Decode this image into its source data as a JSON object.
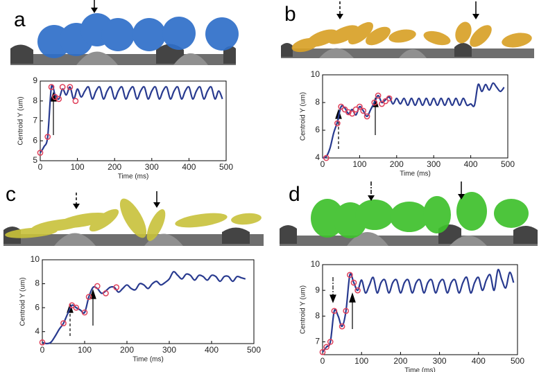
{
  "chart_data": [
    {
      "type": "line",
      "label": "a",
      "xlabel": "Time (ms)",
      "ylabel": "Centroid Y (um)",
      "color": "#283a8f",
      "xlim": [
        0,
        500
      ],
      "xticks": [
        0,
        100,
        200,
        300,
        400,
        500
      ],
      "ylim": [
        5,
        9
      ],
      "yticks": [
        5,
        6,
        7,
        8,
        9
      ],
      "x": [
        0,
        10,
        20,
        30,
        40,
        50,
        60,
        70,
        80,
        90,
        100,
        110,
        120,
        130,
        140,
        150,
        160,
        170,
        180,
        190,
        200,
        210,
        220,
        230,
        240,
        250,
        260,
        270,
        280,
        290,
        300,
        310,
        320,
        330,
        340,
        350,
        360,
        370,
        380,
        390,
        400,
        410,
        420,
        430,
        440,
        450,
        460,
        470,
        480,
        490
      ],
      "values": [
        5.4,
        5.7,
        6.2,
        8.7,
        8.3,
        8.1,
        8.6,
        8.3,
        8.7,
        8.1,
        8.6,
        8.2,
        8.5,
        8.7,
        8.1,
        8.5,
        8.7,
        8.1,
        8.5,
        8.7,
        8.1,
        8.5,
        8.7,
        8.1,
        8.5,
        8.7,
        8.1,
        8.5,
        8.7,
        8.1,
        8.5,
        8.7,
        8.1,
        8.5,
        8.7,
        8.1,
        8.5,
        8.7,
        8.1,
        8.5,
        8.7,
        8.1,
        8.5,
        8.7,
        8.1,
        8.5,
        8.7,
        8.1,
        8.5,
        8.1
      ],
      "markers": {
        "color": "#e0405a",
        "x": [
          0,
          20,
          30,
          40,
          50,
          60,
          80,
          95
        ],
        "values": [
          5.4,
          6.2,
          8.7,
          8.2,
          8.1,
          8.7,
          8.7,
          8.0
        ]
      }
    },
    {
      "type": "line",
      "label": "b",
      "xlabel": "Time (ms)",
      "ylabel": "Centroid Y (um)",
      "color": "#283a8f",
      "xlim": [
        0,
        500
      ],
      "xticks": [
        0,
        100,
        200,
        300,
        400,
        500
      ],
      "ylim": [
        4,
        10
      ],
      "yticks": [
        4,
        6,
        8,
        10
      ],
      "x": [
        0,
        10,
        20,
        30,
        40,
        50,
        60,
        70,
        80,
        90,
        100,
        110,
        120,
        130,
        140,
        150,
        160,
        170,
        180,
        190,
        200,
        210,
        220,
        230,
        240,
        250,
        260,
        270,
        280,
        290,
        300,
        310,
        320,
        330,
        340,
        350,
        360,
        370,
        380,
        390,
        400,
        410,
        420,
        430,
        440,
        450,
        460,
        470,
        480,
        490
      ],
      "values": [
        4.0,
        4.1,
        4.7,
        5.8,
        6.6,
        7.7,
        7.6,
        7.2,
        7.5,
        7.1,
        7.7,
        7.4,
        7.0,
        7.5,
        8.0,
        8.5,
        8.0,
        8.2,
        8.4,
        7.9,
        8.3,
        7.9,
        8.3,
        7.8,
        8.3,
        7.8,
        8.3,
        7.8,
        8.3,
        7.8,
        8.3,
        7.8,
        8.3,
        7.8,
        8.3,
        7.8,
        8.3,
        7.8,
        8.3,
        7.8,
        7.9,
        7.8,
        9.3,
        8.8,
        9.3,
        8.9,
        9.4,
        9.1,
        8.8,
        9.1
      ],
      "markers": {
        "color": "#e0405a",
        "x": [
          10,
          40,
          50,
          60,
          70,
          80,
          90,
          100,
          110,
          120,
          140,
          150,
          160,
          170,
          180
        ],
        "values": [
          4.0,
          6.5,
          7.7,
          7.5,
          7.3,
          7.2,
          7.5,
          7.7,
          7.4,
          7.0,
          8.0,
          8.5,
          7.9,
          8.1,
          8.3
        ]
      }
    },
    {
      "type": "line",
      "label": "c",
      "xlabel": "Time (ms)",
      "ylabel": "Centroid Y (um)",
      "color": "#283a8f",
      "xlim": [
        0,
        500
      ],
      "xticks": [
        0,
        100,
        200,
        300,
        400,
        500
      ],
      "ylim": [
        3,
        10
      ],
      "yticks": [
        4,
        6,
        8,
        10
      ],
      "x": [
        0,
        10,
        20,
        30,
        40,
        50,
        60,
        70,
        80,
        90,
        100,
        110,
        120,
        130,
        140,
        150,
        160,
        170,
        180,
        190,
        200,
        210,
        220,
        230,
        240,
        250,
        260,
        270,
        280,
        290,
        300,
        310,
        320,
        330,
        340,
        350,
        360,
        370,
        380,
        390,
        400,
        410,
        420,
        430,
        440,
        450,
        460,
        470,
        480
      ],
      "values": [
        3.1,
        3.0,
        3.1,
        3.6,
        4.2,
        4.7,
        5.5,
        6.2,
        6.0,
        5.8,
        5.6,
        6.9,
        7.7,
        7.6,
        7.2,
        7.4,
        7.7,
        7.7,
        7.3,
        7.6,
        7.9,
        7.6,
        7.5,
        8.0,
        7.9,
        7.6,
        8.0,
        8.2,
        7.9,
        8.1,
        8.4,
        9.0,
        8.7,
        8.4,
        8.8,
        8.7,
        8.3,
        8.7,
        8.6,
        8.3,
        8.7,
        8.6,
        8.2,
        8.6,
        8.6,
        8.2,
        8.6,
        8.5,
        8.4
      ],
      "markers": {
        "color": "#e0405a",
        "x": [
          0,
          50,
          70,
          80,
          100,
          110,
          130,
          150,
          175
        ],
        "values": [
          3.1,
          4.7,
          6.2,
          6.0,
          5.6,
          6.9,
          7.8,
          7.2,
          7.7
        ]
      }
    },
    {
      "type": "line",
      "label": "d",
      "xlabel": "Time (ms)",
      "ylabel": "Centroid Y (um)",
      "color": "#283a8f",
      "xlim": [
        0,
        500
      ],
      "xticks": [
        0,
        100,
        200,
        300,
        400,
        500
      ],
      "ylim": [
        6.5,
        10
      ],
      "yticks": [
        7,
        8,
        9,
        10
      ],
      "x": [
        0,
        10,
        20,
        30,
        40,
        50,
        60,
        70,
        80,
        90,
        100,
        110,
        120,
        130,
        140,
        150,
        160,
        170,
        180,
        190,
        200,
        210,
        220,
        230,
        240,
        250,
        260,
        270,
        280,
        290,
        300,
        310,
        320,
        330,
        340,
        350,
        360,
        370,
        380,
        390,
        400,
        410,
        420,
        430,
        440,
        450,
        460,
        470,
        480,
        490
      ],
      "values": [
        6.6,
        6.8,
        7.0,
        8.2,
        8.0,
        7.6,
        8.2,
        9.6,
        9.3,
        9.0,
        9.4,
        8.9,
        9.2,
        9.5,
        8.9,
        9.3,
        9.4,
        8.9,
        9.3,
        9.4,
        8.9,
        9.3,
        9.4,
        8.9,
        9.3,
        9.4,
        8.9,
        9.3,
        9.4,
        8.9,
        9.3,
        9.4,
        8.9,
        9.3,
        9.4,
        8.9,
        9.3,
        9.5,
        8.9,
        9.3,
        9.5,
        9.0,
        9.4,
        9.6,
        9.0,
        9.8,
        9.4,
        9.1,
        9.7,
        9.3
      ],
      "markers": {
        "color": "#e0405a",
        "x": [
          0,
          10,
          20,
          30,
          50,
          60,
          70,
          80,
          90
        ],
        "values": [
          6.6,
          6.8,
          7.0,
          8.2,
          7.6,
          8.2,
          9.6,
          9.3,
          9.0
        ]
      }
    }
  ]
}
